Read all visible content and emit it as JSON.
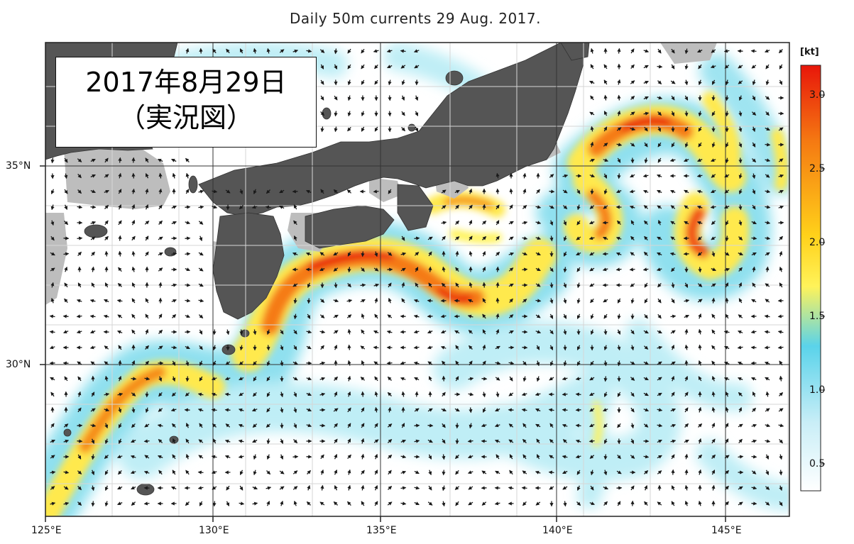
{
  "title": "Daily 50m currents 29 Aug. 2017.",
  "label": {
    "line1": "2017年8月29日",
    "line2": "（実況図）"
  },
  "x_ticks": [
    "125°E",
    "130°E",
    "135°E",
    "140°E",
    "145°E"
  ],
  "y_ticks": [
    "35°N",
    "30°N"
  ],
  "colorbar": {
    "unit": "[kt]",
    "ticks": [
      "3.0",
      "2.5",
      "2.0",
      "1.5",
      "1.0",
      "0.5"
    ],
    "colors": {
      "max": "#e8160a",
      "high": "#f57a12",
      "mid": "#ffd11a",
      "yellow": "#fff35a",
      "cyan": "#5ad3ea",
      "light": "#c9eef7",
      "min": "#ffffff"
    }
  },
  "map_colors": {
    "land": "#555555",
    "shelf": "#bdbdbd",
    "sea": "#ffffff",
    "arrow": "#1a1a1a"
  }
}
